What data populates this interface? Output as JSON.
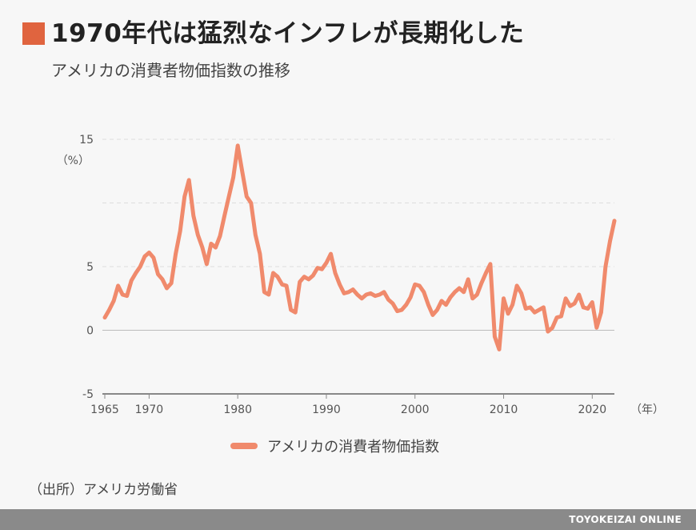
{
  "header": {
    "title": "1970年代は猛烈なインフレが長期化した",
    "subtitle": "アメリカの消費者物価指数の推移"
  },
  "source": "（出所）アメリカ労働省",
  "footer": {
    "brand": "TOYOKEIZAI ONLINE"
  },
  "colors": {
    "accent": "#e0643f",
    "series": "#f08a6c",
    "grid": "#dddddd",
    "axis": "#888888"
  },
  "chart_data": {
    "type": "line",
    "title": "1970年代は猛烈なインフレが長期化した",
    "subtitle": "アメリカの消費者物価指数の推移",
    "y_unit_label": "（%）",
    "x_unit_label": "（年）",
    "ylim": [
      -5,
      15
    ],
    "xlim": [
      1965,
      2022.5
    ],
    "y_ticks": [
      {
        "value": 15,
        "label": "15"
      },
      {
        "value": 5,
        "label": "5"
      },
      {
        "value": 0,
        "label": "0"
      },
      {
        "value": -5,
        "label": "-5"
      }
    ],
    "y_gridlines": [
      15,
      10,
      5,
      0
    ],
    "x_ticks": [
      {
        "value": 1965,
        "label": "1965"
      },
      {
        "value": 1970,
        "label": "1970"
      },
      {
        "value": 1980,
        "label": "1980"
      },
      {
        "value": 1990,
        "label": "1990"
      },
      {
        "value": 2000,
        "label": "2000"
      },
      {
        "value": 2010,
        "label": "2010"
      },
      {
        "value": 2020,
        "label": "2020"
      }
    ],
    "grid": true,
    "legend": "bottom",
    "series": [
      {
        "name": "アメリカの消費者物価指数",
        "x": [
          1965,
          1965.5,
          1966,
          1966.5,
          1967,
          1967.5,
          1968,
          1968.5,
          1969,
          1969.5,
          1970,
          1970.5,
          1971,
          1971.5,
          1972,
          1972.5,
          1973,
          1973.5,
          1974,
          1974.5,
          1975,
          1975.5,
          1976,
          1976.5,
          1977,
          1977.5,
          1978,
          1978.5,
          1979,
          1979.5,
          1980,
          1980.5,
          1981,
          1981.5,
          1982,
          1982.5,
          1983,
          1983.5,
          1984,
          1984.5,
          1985,
          1985.5,
          1986,
          1986.5,
          1987,
          1987.5,
          1988,
          1988.5,
          1989,
          1989.5,
          1990,
          1990.5,
          1991,
          1991.5,
          1992,
          1992.5,
          1993,
          1993.5,
          1994,
          1994.5,
          1995,
          1995.5,
          1996,
          1996.5,
          1997,
          1997.5,
          1998,
          1998.5,
          1999,
          1999.5,
          2000,
          2000.5,
          2001,
          2001.5,
          2002,
          2002.5,
          2003,
          2003.5,
          2004,
          2004.5,
          2005,
          2005.5,
          2006,
          2006.5,
          2007,
          2007.5,
          2008,
          2008.5,
          2009,
          2009.5,
          2010,
          2010.5,
          2011,
          2011.5,
          2012,
          2012.5,
          2013,
          2013.5,
          2014,
          2014.5,
          2015,
          2015.5,
          2016,
          2016.5,
          2017,
          2017.5,
          2018,
          2018.5,
          2019,
          2019.5,
          2020,
          2020.5,
          2021,
          2021.5,
          2022,
          2022.5
        ],
        "values": [
          1.0,
          1.6,
          2.3,
          3.5,
          2.8,
          2.7,
          3.9,
          4.5,
          5.0,
          5.8,
          6.1,
          5.7,
          4.4,
          4.0,
          3.3,
          3.7,
          6.0,
          7.8,
          10.5,
          11.8,
          9.0,
          7.5,
          6.5,
          5.2,
          6.8,
          6.5,
          7.4,
          9.0,
          10.5,
          12.0,
          14.5,
          12.5,
          10.5,
          10.0,
          7.5,
          6.0,
          3.0,
          2.8,
          4.5,
          4.2,
          3.6,
          3.5,
          1.6,
          1.4,
          3.8,
          4.2,
          4.0,
          4.3,
          4.9,
          4.8,
          5.3,
          6.0,
          4.5,
          3.6,
          2.9,
          3.0,
          3.2,
          2.8,
          2.5,
          2.8,
          2.9,
          2.7,
          2.8,
          3.0,
          2.4,
          2.1,
          1.5,
          1.6,
          2.0,
          2.6,
          3.6,
          3.5,
          3.0,
          2.0,
          1.2,
          1.6,
          2.3,
          2.0,
          2.6,
          3.0,
          3.3,
          3.0,
          4.0,
          2.5,
          2.8,
          3.7,
          4.5,
          5.2,
          -0.5,
          -1.5,
          2.5,
          1.3,
          2.0,
          3.5,
          2.9,
          1.7,
          1.8,
          1.4,
          1.6,
          1.8,
          -0.1,
          0.2,
          1.0,
          1.1,
          2.5,
          1.9,
          2.1,
          2.8,
          1.8,
          1.7,
          2.2,
          0.2,
          1.4,
          5.0,
          7.0,
          8.6
        ]
      }
    ]
  }
}
